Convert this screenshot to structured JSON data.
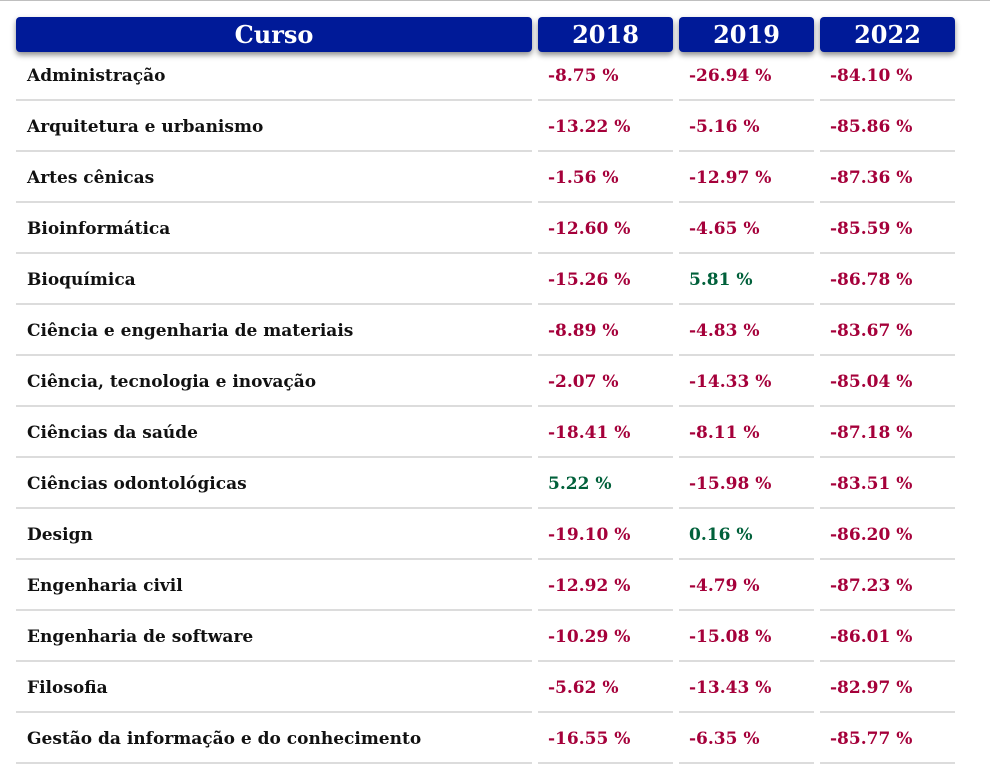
{
  "colors": {
    "header_bg": "#001a98",
    "header_text": "#ffffff",
    "negative": "#a5003a",
    "positive": "#00603a",
    "row_divider": "#dcdcdc"
  },
  "table": {
    "headers": [
      "Curso",
      "2018",
      "2019",
      "2022"
    ],
    "rows": [
      {
        "course": "Administração",
        "v2018": "-8.75 %",
        "v2019": "-26.94 %",
        "v2022": "-84.10 %"
      },
      {
        "course": "Arquitetura e urbanismo",
        "v2018": "-13.22 %",
        "v2019": "-5.16 %",
        "v2022": "-85.86 %"
      },
      {
        "course": "Artes cênicas",
        "v2018": "-1.56 %",
        "v2019": "-12.97 %",
        "v2022": "-87.36 %"
      },
      {
        "course": "Bioinformática",
        "v2018": "-12.60 %",
        "v2019": "-4.65 %",
        "v2022": "-85.59 %"
      },
      {
        "course": "Bioquímica",
        "v2018": "-15.26 %",
        "v2019": "5.81 %",
        "v2022": "-86.78 %"
      },
      {
        "course": "Ciência e engenharia de materiais",
        "v2018": "-8.89 %",
        "v2019": "-4.83 %",
        "v2022": "-83.67 %"
      },
      {
        "course": "Ciência, tecnologia e inovação",
        "v2018": "-2.07 %",
        "v2019": "-14.33 %",
        "v2022": "-85.04 %"
      },
      {
        "course": "Ciências da saúde",
        "v2018": "-18.41 %",
        "v2019": "-8.11 %",
        "v2022": "-87.18 %"
      },
      {
        "course": "Ciências odontológicas",
        "v2018": "5.22 %",
        "v2019": "-15.98 %",
        "v2022": "-83.51 %"
      },
      {
        "course": "Design",
        "v2018": "-19.10 %",
        "v2019": "0.16 %",
        "v2022": "-86.20 %"
      },
      {
        "course": "Engenharia civil",
        "v2018": "-12.92 %",
        "v2019": "-4.79 %",
        "v2022": "-87.23 %"
      },
      {
        "course": "Engenharia de software",
        "v2018": "-10.29 %",
        "v2019": "-15.08 %",
        "v2022": "-86.01 %"
      },
      {
        "course": "Filosofia",
        "v2018": "-5.62 %",
        "v2019": "-13.43 %",
        "v2022": "-82.97 %"
      },
      {
        "course": "Gestão da informação e do conhecimento",
        "v2018": "-16.55 %",
        "v2019": "-6.35 %",
        "v2022": "-85.77 %"
      }
    ]
  }
}
